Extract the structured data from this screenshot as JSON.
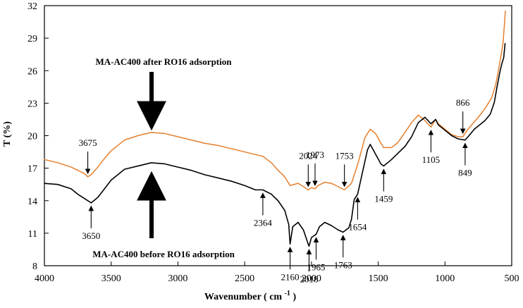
{
  "chart_data": {
    "type": "line",
    "xlabel": "Wavenumber",
    "xlabel_unit": "cm",
    "xlabel_exponent": "-1",
    "ylabel": "T (%)",
    "xlim": [
      4000,
      500
    ],
    "ylim": [
      8,
      32
    ],
    "x_ticks": [
      4000,
      3500,
      3000,
      2500,
      2000,
      1500,
      1000,
      500
    ],
    "y_ticks": [
      8,
      11,
      14,
      17,
      20,
      23,
      26,
      29,
      32
    ],
    "grid": false,
    "series": [
      {
        "color": "#e57f2d",
        "points": [
          [
            4000,
            17.8
          ],
          [
            3900,
            17.5
          ],
          [
            3800,
            17.1
          ],
          [
            3750,
            16.8
          ],
          [
            3700,
            16.5
          ],
          [
            3675,
            16.2
          ],
          [
            3650,
            16.4
          ],
          [
            3600,
            17.1
          ],
          [
            3550,
            17.9
          ],
          [
            3500,
            18.6
          ],
          [
            3450,
            19.1
          ],
          [
            3400,
            19.6
          ],
          [
            3300,
            20.0
          ],
          [
            3200,
            20.3
          ],
          [
            3100,
            20.2
          ],
          [
            3000,
            19.9
          ],
          [
            2900,
            19.6
          ],
          [
            2800,
            19.3
          ],
          [
            2700,
            19.1
          ],
          [
            2600,
            18.8
          ],
          [
            2500,
            18.5
          ],
          [
            2400,
            18.2
          ],
          [
            2364,
            18.1
          ],
          [
            2300,
            17.5
          ],
          [
            2250,
            16.8
          ],
          [
            2200,
            16.2
          ],
          [
            2160,
            15.4
          ],
          [
            2100,
            15.6
          ],
          [
            2060,
            15.3
          ],
          [
            2024,
            15.0
          ],
          [
            2000,
            15.2
          ],
          [
            1973,
            15.1
          ],
          [
            1950,
            15.4
          ],
          [
            1900,
            15.7
          ],
          [
            1850,
            15.6
          ],
          [
            1800,
            15.3
          ],
          [
            1753,
            15.0
          ],
          [
            1700,
            15.6
          ],
          [
            1650,
            17.5
          ],
          [
            1600,
            19.8
          ],
          [
            1560,
            20.6
          ],
          [
            1520,
            20.2
          ],
          [
            1480,
            19.3
          ],
          [
            1459,
            18.9
          ],
          [
            1400,
            18.9
          ],
          [
            1350,
            19.4
          ],
          [
            1300,
            20.3
          ],
          [
            1250,
            21.2
          ],
          [
            1200,
            21.9
          ],
          [
            1150,
            21.4
          ],
          [
            1105,
            20.8
          ],
          [
            1070,
            21.5
          ],
          [
            1050,
            21.1
          ],
          [
            1000,
            20.6
          ],
          [
            950,
            20.1
          ],
          [
            900,
            19.9
          ],
          [
            866,
            19.9
          ],
          [
            840,
            20.4
          ],
          [
            800,
            21.0
          ],
          [
            750,
            21.7
          ],
          [
            700,
            22.5
          ],
          [
            650,
            23.5
          ],
          [
            620,
            24.7
          ],
          [
            600,
            26.0
          ],
          [
            580,
            27.4
          ],
          [
            565,
            28.6
          ],
          [
            555,
            30.2
          ],
          [
            548,
            31.5
          ]
        ]
      },
      {
        "color": "#000000",
        "points": [
          [
            4000,
            15.6
          ],
          [
            3900,
            15.5
          ],
          [
            3800,
            15.1
          ],
          [
            3750,
            14.6
          ],
          [
            3700,
            14.2
          ],
          [
            3650,
            13.8
          ],
          [
            3600,
            14.3
          ],
          [
            3550,
            15.1
          ],
          [
            3500,
            15.9
          ],
          [
            3450,
            16.4
          ],
          [
            3400,
            16.9
          ],
          [
            3300,
            17.2
          ],
          [
            3200,
            17.5
          ],
          [
            3100,
            17.4
          ],
          [
            3000,
            17.1
          ],
          [
            2900,
            16.8
          ],
          [
            2800,
            16.4
          ],
          [
            2700,
            16.1
          ],
          [
            2600,
            15.8
          ],
          [
            2500,
            15.4
          ],
          [
            2420,
            15.0
          ],
          [
            2364,
            15.0
          ],
          [
            2300,
            14.6
          ],
          [
            2250,
            14.0
          ],
          [
            2200,
            13.1
          ],
          [
            2170,
            11.8
          ],
          [
            2160,
            10.0
          ],
          [
            2140,
            11.6
          ],
          [
            2100,
            12.0
          ],
          [
            2060,
            11.3
          ],
          [
            2030,
            10.2
          ],
          [
            2018,
            9.8
          ],
          [
            2000,
            10.6
          ],
          [
            1965,
            10.9
          ],
          [
            1940,
            11.6
          ],
          [
            1900,
            12.0
          ],
          [
            1850,
            11.7
          ],
          [
            1800,
            11.3
          ],
          [
            1763,
            11.1
          ],
          [
            1720,
            11.5
          ],
          [
            1700,
            12.3
          ],
          [
            1680,
            14.1
          ],
          [
            1654,
            14.6
          ],
          [
            1620,
            16.5
          ],
          [
            1580,
            18.7
          ],
          [
            1560,
            19.2
          ],
          [
            1520,
            18.3
          ],
          [
            1480,
            17.4
          ],
          [
            1459,
            17.2
          ],
          [
            1400,
            17.8
          ],
          [
            1350,
            18.4
          ],
          [
            1300,
            19.0
          ],
          [
            1250,
            19.9
          ],
          [
            1200,
            21.2
          ],
          [
            1150,
            21.7
          ],
          [
            1105,
            21.1
          ],
          [
            1070,
            21.5
          ],
          [
            1050,
            21.0
          ],
          [
            1000,
            20.5
          ],
          [
            950,
            20.0
          ],
          [
            900,
            19.7
          ],
          [
            849,
            19.6
          ],
          [
            820,
            20.0
          ],
          [
            780,
            20.6
          ],
          [
            740,
            21.0
          ],
          [
            700,
            21.4
          ],
          [
            660,
            22.0
          ],
          [
            630,
            23.1
          ],
          [
            610,
            24.5
          ],
          [
            590,
            25.8
          ],
          [
            575,
            26.6
          ],
          [
            560,
            27.2
          ],
          [
            550,
            28.5
          ]
        ]
      }
    ],
    "annotations": {
      "orange": [
        {
          "label": "3675",
          "x": 3675,
          "y": 16.2,
          "direction": "above"
        },
        {
          "label": "2024",
          "x": 2024,
          "y": 15.0,
          "direction": "above"
        },
        {
          "label": "1973",
          "x": 1973,
          "y": 15.1,
          "direction": "above"
        },
        {
          "label": "1753",
          "x": 1753,
          "y": 15.0,
          "direction": "above"
        },
        {
          "label": "866",
          "x": 866,
          "y": 19.9,
          "direction": "above"
        },
        {
          "label": "1105",
          "x": 1105,
          "y": 20.8,
          "direction": "below"
        }
      ],
      "black": [
        {
          "label": "3650",
          "x": 3650,
          "y": 13.8,
          "direction": "below"
        },
        {
          "label": "2364",
          "x": 2364,
          "y": 15.0,
          "direction": "below"
        },
        {
          "label": "2160",
          "x": 2160,
          "y": 10.0,
          "direction": "below"
        },
        {
          "label": "2018",
          "x": 2018,
          "y": 9.8,
          "direction": "below"
        },
        {
          "label": "1965",
          "x": 1965,
          "y": 10.9,
          "direction": "below"
        },
        {
          "label": "1763",
          "x": 1763,
          "y": 11.1,
          "direction": "below"
        },
        {
          "label": "1654",
          "x": 1654,
          "y": 14.6,
          "direction": "below"
        },
        {
          "label": "1459",
          "x": 1459,
          "y": 17.2,
          "direction": "below"
        },
        {
          "label": "849",
          "x": 849,
          "y": 19.6,
          "direction": "below"
        }
      ]
    },
    "series_notes": {
      "top": "MA-AC400 after RO16 adsorption",
      "bottom": "MA-AC400 before RO16 adsorption"
    }
  }
}
